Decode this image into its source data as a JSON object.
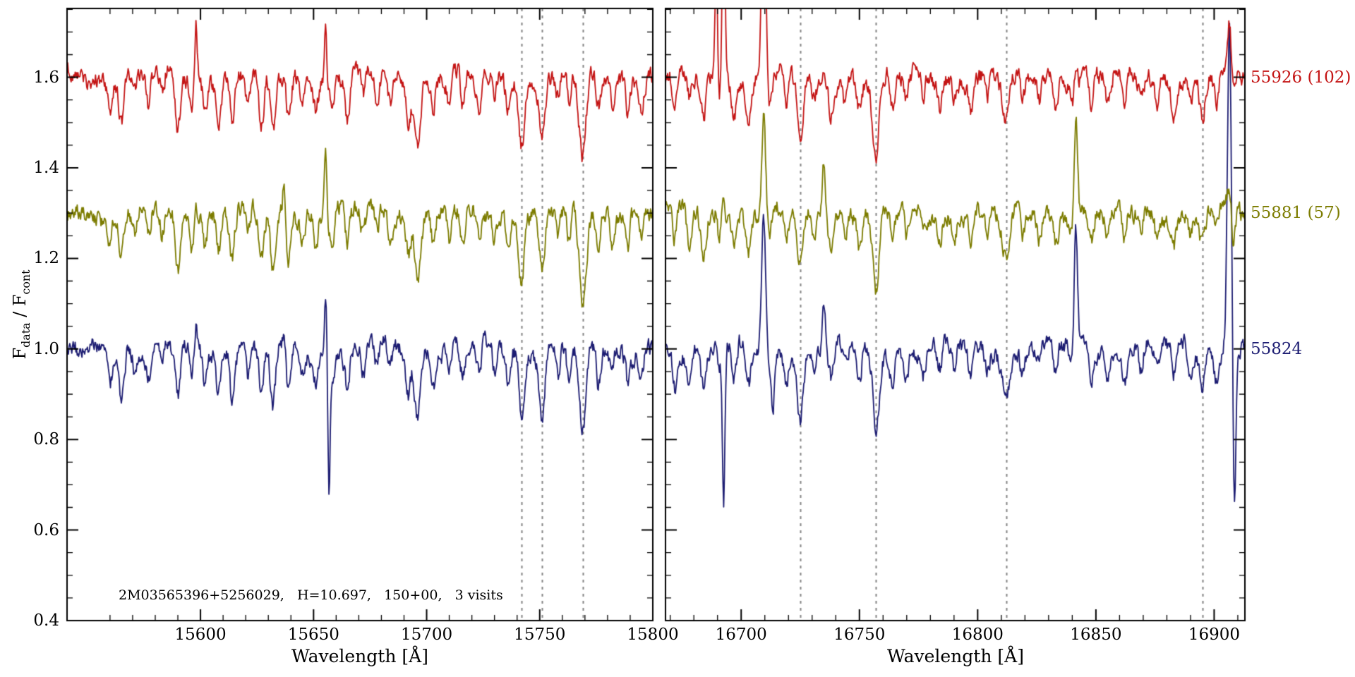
{
  "chart_data": {
    "type": "line",
    "title": "",
    "ylabel_parts": {
      "f1": "F",
      "sub1": "data",
      "sep": " / ",
      "f2": "F",
      "sub2": "cont"
    },
    "ylim": [
      0.4,
      1.752
    ],
    "yticks": [
      0.4,
      0.6,
      0.8,
      1.0,
      1.2,
      1.4,
      1.6
    ],
    "y_minor_step": 0.05,
    "x_minor_step": 10,
    "noise": 0.016,
    "dashed_color": "#848484",
    "annotation": "2M03565396+5256029,   H=10.697,   150+00,   3 visits",
    "legend_position": "right-outside",
    "grid": false,
    "series": [
      {
        "name": "55926 (102)",
        "color": "#c41414",
        "offset": 1.6,
        "seed": 11
      },
      {
        "name": "55881 (57)",
        "color": "#7c7c00",
        "offset": 1.3,
        "seed": 23
      },
      {
        "name": "55824",
        "color": "#1c1c72",
        "offset": 1.0,
        "seed": 37
      }
    ],
    "panels": [
      {
        "xlabel": "Wavelength [Å]",
        "xlim": [
          15541,
          15800
        ],
        "xticks": [
          15600,
          15650,
          15700,
          15750,
          15800
        ],
        "dashed_lines": [
          15742,
          15751,
          15769
        ],
        "lines": [
          [
            15560,
            0.07,
            0.9
          ],
          [
            15565,
            0.1,
            1.1
          ],
          [
            15571,
            0.05,
            0.8
          ],
          [
            15577,
            0.06,
            0.9
          ],
          [
            15583,
            0.05,
            0.8
          ],
          [
            15590,
            0.12,
            1.1
          ],
          [
            15596,
            0.06,
            0.8
          ],
          [
            15602,
            0.07,
            0.9
          ],
          [
            15608,
            0.09,
            1.0
          ],
          [
            15614,
            0.1,
            1.0
          ],
          [
            15621,
            0.07,
            0.9
          ],
          [
            15627,
            0.11,
            1.1
          ],
          [
            15632,
            0.12,
            1.1
          ],
          [
            15639,
            0.1,
            1.0
          ],
          [
            15645,
            0.06,
            0.9
          ],
          [
            15651,
            0.07,
            0.9
          ],
          [
            15658,
            0.08,
            1.0
          ],
          [
            15665,
            0.09,
            1.0
          ],
          [
            15672,
            0.06,
            0.9
          ],
          [
            15678,
            0.05,
            0.8
          ],
          [
            15684,
            0.06,
            0.9
          ],
          [
            15692,
            0.08,
            1.0
          ],
          [
            15696,
            0.15,
            1.3
          ],
          [
            15703,
            0.07,
            0.9
          ],
          [
            15710,
            0.06,
            0.9
          ],
          [
            15716,
            0.07,
            0.9
          ],
          [
            15723,
            0.08,
            1.0
          ],
          [
            15730,
            0.05,
            0.8
          ],
          [
            15736,
            0.06,
            0.9
          ],
          [
            15742,
            0.16,
            1.2
          ],
          [
            15751,
            0.14,
            1.2
          ],
          [
            15758,
            0.06,
            0.9
          ],
          [
            15763,
            0.07,
            0.9
          ],
          [
            15769,
            0.19,
            1.5
          ],
          [
            15776,
            0.07,
            0.9
          ],
          [
            15782,
            0.06,
            0.9
          ],
          [
            15789,
            0.07,
            0.9
          ],
          [
            15795,
            0.06,
            0.9
          ]
        ],
        "spikes": [
          [
            15598,
            0.5,
            [
              0.12,
              0.02,
              0.05
            ]
          ],
          [
            15637,
            0.5,
            [
              0.03,
              0.09,
              0.05
            ]
          ],
          [
            15655.3,
            0.5,
            [
              0.1,
              0.17,
              0.13
            ]
          ],
          [
            15656.8,
            0.45,
            [
              0,
              0,
              -0.27
            ]
          ]
        ]
      },
      {
        "xlabel": "Wavelength [Å]",
        "xlim": [
          16668,
          16913
        ],
        "xticks": [
          16700,
          16750,
          16800,
          16850,
          16900
        ],
        "dashed_lines": [
          16725,
          16757,
          16812,
          16895
        ],
        "lines": [
          [
            16672,
            0.07,
            0.9
          ],
          [
            16678,
            0.06,
            0.9
          ],
          [
            16684,
            0.1,
            1.1
          ],
          [
            16690,
            0.06,
            0.9
          ],
          [
            16697,
            0.07,
            0.9
          ],
          [
            16703,
            0.09,
            1.0
          ],
          [
            16712,
            0.06,
            0.9
          ],
          [
            16719,
            0.07,
            0.9
          ],
          [
            16725,
            0.14,
            1.3
          ],
          [
            16731,
            0.06,
            0.9
          ],
          [
            16738,
            0.07,
            0.9
          ],
          [
            16744,
            0.06,
            0.9
          ],
          [
            16750,
            0.07,
            0.9
          ],
          [
            16757,
            0.16,
            1.4
          ],
          [
            16764,
            0.07,
            0.9
          ],
          [
            16770,
            0.06,
            0.9
          ],
          [
            16777,
            0.05,
            0.8
          ],
          [
            16784,
            0.06,
            0.9
          ],
          [
            16790,
            0.05,
            0.8
          ],
          [
            16797,
            0.06,
            0.9
          ],
          [
            16804,
            0.05,
            0.8
          ],
          [
            16812,
            0.1,
            1.6
          ],
          [
            16819,
            0.06,
            0.9
          ],
          [
            16826,
            0.05,
            0.8
          ],
          [
            16833,
            0.06,
            0.9
          ],
          [
            16840,
            0.05,
            0.8
          ],
          [
            16848,
            0.07,
            0.9
          ],
          [
            16855,
            0.06,
            0.9
          ],
          [
            16862,
            0.07,
            0.9
          ],
          [
            16869,
            0.05,
            0.8
          ],
          [
            16876,
            0.06,
            0.9
          ],
          [
            16883,
            0.07,
            0.9
          ],
          [
            16890,
            0.06,
            0.9
          ],
          [
            16895,
            0.08,
            1.1
          ],
          [
            16901,
            0.06,
            0.9
          ],
          [
            16908,
            0.07,
            0.9
          ]
        ],
        "spikes": [
          [
            16689.5,
            0.55,
            [
              0.3,
              0.06,
              0.06
            ]
          ],
          [
            16692.6,
            0.55,
            [
              0.5,
              0.04,
              -0.34
            ]
          ],
          [
            16709.5,
            0.8,
            [
              0.55,
              0.22,
              0.3
            ]
          ],
          [
            16713.5,
            0.5,
            [
              0,
              0,
              -0.13
            ]
          ],
          [
            16735,
            0.6,
            [
              0,
              0.12,
              0.1
            ]
          ],
          [
            16841.5,
            0.7,
            [
              0.04,
              0.21,
              0.26
            ]
          ],
          [
            16906.5,
            0.9,
            [
              0.12,
              0.06,
              0.75
            ]
          ],
          [
            16908.5,
            0.6,
            [
              0,
              0,
              -0.32
            ]
          ]
        ]
      }
    ]
  }
}
